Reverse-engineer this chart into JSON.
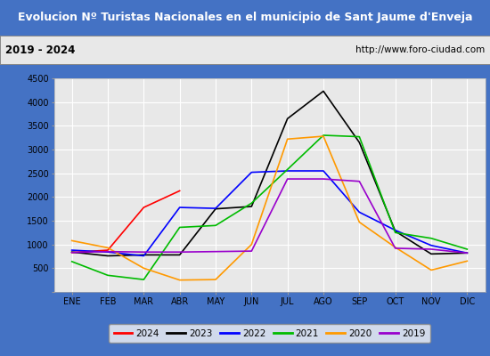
{
  "title": "Evolucion Nº Turistas Nacionales en el municipio de Sant Jaume d'Enveja",
  "subtitle_left": "2019 - 2024",
  "subtitle_right": "http://www.foro-ciudad.com",
  "months": [
    "ENE",
    "FEB",
    "MAR",
    "ABR",
    "MAY",
    "JUN",
    "JUL",
    "AGO",
    "SEP",
    "OCT",
    "NOV",
    "DIC"
  ],
  "series": {
    "2024": {
      "color": "#ff0000",
      "data": [
        830,
        880,
        1780,
        2130,
        null,
        null,
        null,
        null,
        null,
        null,
        null,
        null
      ]
    },
    "2023": {
      "color": "#000000",
      "data": [
        840,
        760,
        780,
        780,
        1750,
        1800,
        3650,
        4230,
        3150,
        1280,
        800,
        820
      ]
    },
    "2022": {
      "color": "#0000ff",
      "data": [
        880,
        840,
        760,
        1780,
        1760,
        2520,
        2550,
        2550,
        1680,
        1300,
        980,
        820
      ]
    },
    "2021": {
      "color": "#00bb00",
      "data": [
        640,
        350,
        260,
        1360,
        1400,
        1870,
        2580,
        3300,
        3270,
        1250,
        1130,
        900
      ]
    },
    "2020": {
      "color": "#ff9900",
      "data": [
        1080,
        930,
        500,
        250,
        260,
        1000,
        3220,
        3280,
        1470,
        940,
        460,
        650
      ]
    },
    "2019": {
      "color": "#9900cc",
      "data": [
        830,
        850,
        840,
        840,
        850,
        860,
        2380,
        2380,
        2330,
        920,
        900,
        820
      ]
    }
  },
  "ylim": [
    0,
    4500
  ],
  "yticks": [
    0,
    500,
    1000,
    1500,
    2000,
    2500,
    3000,
    3500,
    4000,
    4500
  ],
  "title_bg": "#4472c4",
  "title_color": "#ffffff",
  "subtitle_bg": "#e8e8e8",
  "plot_bg": "#e8e8e8",
  "grid_color": "#ffffff",
  "outer_bg": "#4472c4",
  "legend_order": [
    "2024",
    "2023",
    "2022",
    "2021",
    "2020",
    "2019"
  ]
}
